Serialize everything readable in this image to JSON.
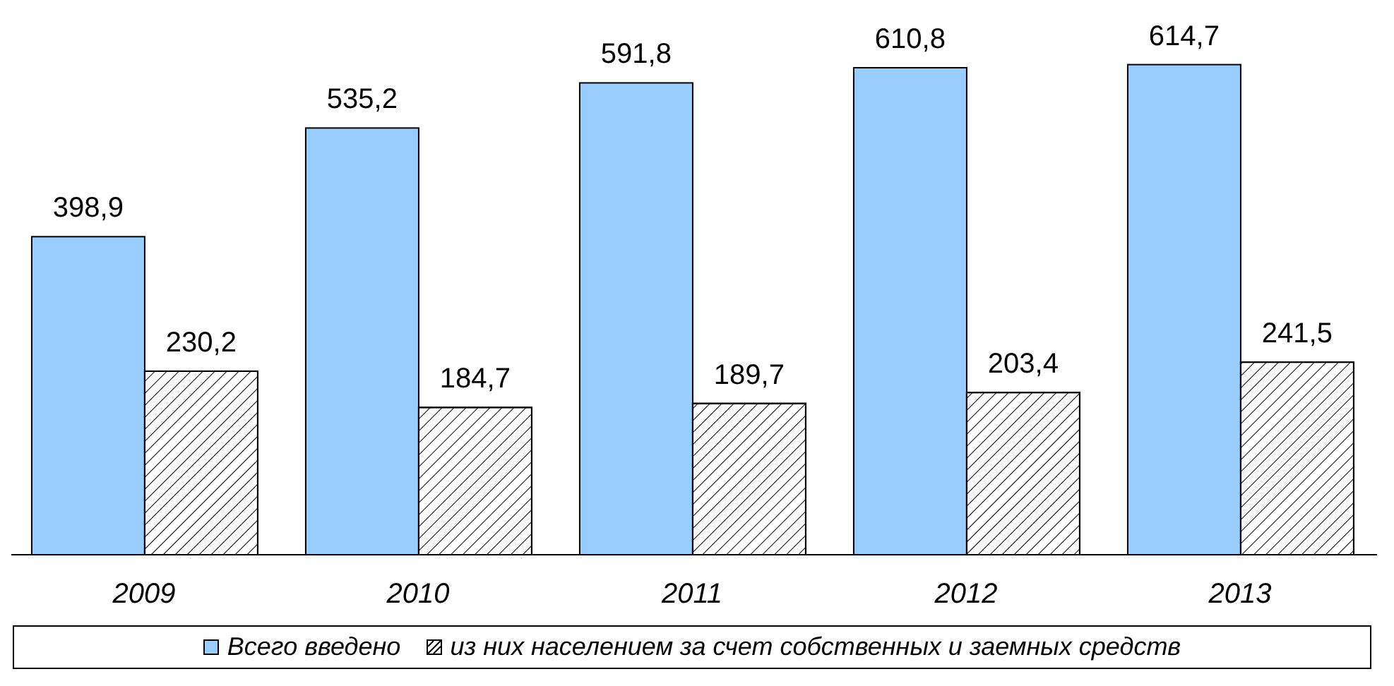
{
  "chart_data": {
    "type": "bar",
    "categories": [
      "2009",
      "2010",
      "2011",
      "2012",
      "2013"
    ],
    "series": [
      {
        "name": "Всего введено",
        "color": "#99ccff",
        "values": [
          398.9,
          535.2,
          591.8,
          610.8,
          614.7
        ],
        "value_labels": [
          "398,9",
          "535,2",
          "591,8",
          "610,8",
          "614,7"
        ]
      },
      {
        "name": "из них населением за счет собственных и заемных средств",
        "color": "#ffffff",
        "values": [
          230.2,
          184.7,
          189.7,
          203.4,
          241.5
        ],
        "value_labels": [
          "230,2",
          "184,7",
          "189,7",
          "203,4",
          "241,5"
        ]
      }
    ],
    "legend": "bottom",
    "tick_labels": "x"
  }
}
